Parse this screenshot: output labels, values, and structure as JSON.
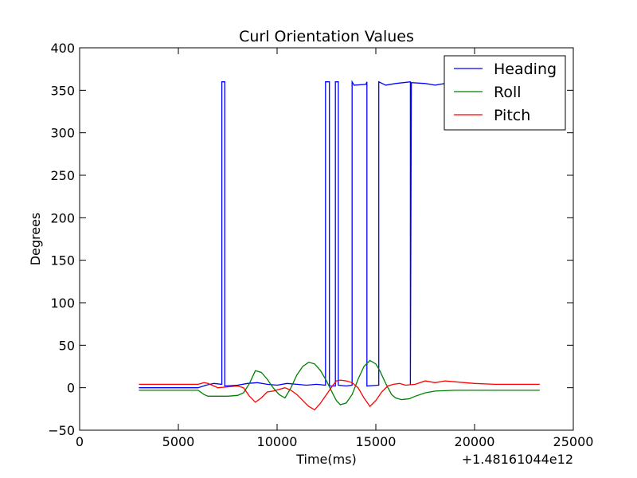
{
  "chart_data": {
    "type": "line",
    "title": "Curl Orientation Values",
    "xlabel": "Time(ms)",
    "ylabel": "Degrees",
    "x_offset_label": "+1.48161044e12",
    "xlim": [
      0,
      25000
    ],
    "ylim": [
      -50,
      400
    ],
    "x_ticks": [
      0,
      5000,
      10000,
      15000,
      20000,
      25000
    ],
    "y_ticks": [
      -50,
      0,
      50,
      100,
      150,
      200,
      250,
      300,
      350,
      400
    ],
    "grid": false,
    "legend_position": "top-right",
    "series": [
      {
        "name": "Heading",
        "color": "#0000ff",
        "x": [
          3000,
          6000,
          6400,
          6800,
          7200,
          7200,
          7350,
          7350,
          8000,
          8500,
          9000,
          9500,
          10000,
          10500,
          11000,
          11500,
          12000,
          12450,
          12450,
          12650,
          12650,
          12950,
          12950,
          13100,
          13100,
          13500,
          13800,
          13800,
          13900,
          14500,
          14550,
          14550,
          15100,
          15150,
          15150,
          15500,
          16000,
          16750,
          16750,
          16800,
          17500,
          18000,
          18500,
          19000,
          19500,
          20000,
          21000,
          22000,
          23300
        ],
        "y": [
          0,
          0,
          3,
          5,
          4,
          360,
          360,
          2,
          3,
          5,
          6,
          4,
          3,
          5,
          4,
          3,
          4,
          3,
          360,
          360,
          2,
          2,
          360,
          360,
          3,
          2,
          3,
          360,
          356,
          357,
          360,
          2,
          3,
          3,
          360,
          356,
          358,
          360,
          3,
          359,
          358,
          356,
          358,
          356,
          355,
          355,
          355,
          355,
          355
        ]
      },
      {
        "name": "Roll",
        "color": "#008000",
        "x": [
          3000,
          5000,
          6000,
          6300,
          6500,
          7000,
          7500,
          8000,
          8300,
          8600,
          8900,
          9200,
          9500,
          9800,
          10100,
          10400,
          10700,
          11000,
          11300,
          11600,
          11900,
          12200,
          12500,
          12800,
          13000,
          13200,
          13500,
          13800,
          14100,
          14400,
          14700,
          15000,
          15200,
          15500,
          15800,
          16000,
          16300,
          16700,
          17000,
          17500,
          18000,
          19000,
          20000,
          21000,
          22000,
          23300
        ],
        "y": [
          -3,
          -3,
          -3,
          -8,
          -10,
          -10,
          -10,
          -9,
          -6,
          5,
          20,
          18,
          10,
          0,
          -8,
          -12,
          0,
          15,
          25,
          30,
          28,
          20,
          8,
          -6,
          -15,
          -20,
          -18,
          -8,
          10,
          25,
          32,
          28,
          20,
          5,
          -8,
          -12,
          -14,
          -13,
          -10,
          -6,
          -4,
          -3,
          -3,
          -3,
          -3,
          -3
        ]
      },
      {
        "name": "Pitch",
        "color": "#ff0000",
        "x": [
          3000,
          5000,
          6000,
          6300,
          6500,
          6800,
          7000,
          7500,
          8000,
          8300,
          8600,
          8900,
          9200,
          9500,
          9800,
          10100,
          10400,
          10700,
          11000,
          11300,
          11600,
          11900,
          12200,
          12500,
          12800,
          13000,
          13200,
          13500,
          13800,
          14100,
          14400,
          14700,
          15000,
          15300,
          15600,
          15900,
          16200,
          16500,
          17000,
          17500,
          18000,
          18500,
          19000,
          19500,
          20000,
          21000,
          22000,
          23300
        ],
        "y": [
          4,
          4,
          4,
          6,
          5,
          2,
          0,
          1,
          2,
          0,
          -10,
          -17,
          -12,
          -5,
          -4,
          -2,
          0,
          -3,
          -8,
          -15,
          -22,
          -26,
          -18,
          -8,
          2,
          8,
          9,
          8,
          6,
          0,
          -12,
          -22,
          -15,
          -5,
          2,
          4,
          5,
          3,
          4,
          8,
          6,
          8,
          7,
          6,
          5,
          4,
          4,
          4
        ]
      }
    ]
  }
}
